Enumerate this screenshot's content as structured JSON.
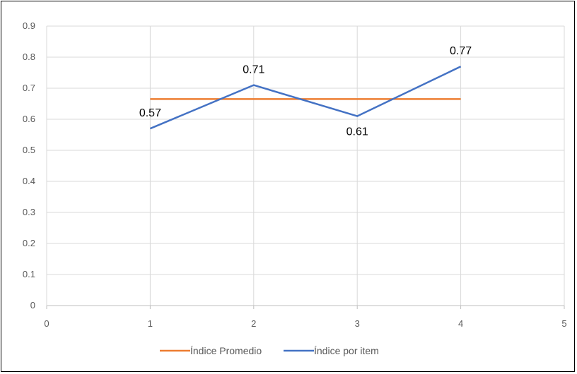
{
  "chart_data": {
    "type": "line",
    "title": "",
    "xlabel": "",
    "ylabel": "",
    "xlim": [
      0,
      5
    ],
    "ylim": [
      0,
      0.9
    ],
    "x_ticks": [
      "0",
      "1",
      "2",
      "3",
      "4",
      "5"
    ],
    "y_ticks": [
      "0",
      "0.1",
      "0.2",
      "0.3",
      "0.4",
      "0.5",
      "0.6",
      "0.7",
      "0.8",
      "0.9"
    ],
    "grid": true,
    "legend_position": "bottom",
    "series": [
      {
        "name": "Índice Promedio",
        "color": "#ED7D31",
        "x": [
          1,
          2,
          3,
          4
        ],
        "values": [
          0.665,
          0.665,
          0.665,
          0.665
        ],
        "data_labels": []
      },
      {
        "name": "Índice por item",
        "color": "#4472C4",
        "x": [
          1,
          2,
          3,
          4
        ],
        "values": [
          0.57,
          0.71,
          0.61,
          0.77
        ],
        "data_labels": [
          "0.57",
          "0.71",
          "0.61",
          "0.77"
        ]
      }
    ]
  }
}
